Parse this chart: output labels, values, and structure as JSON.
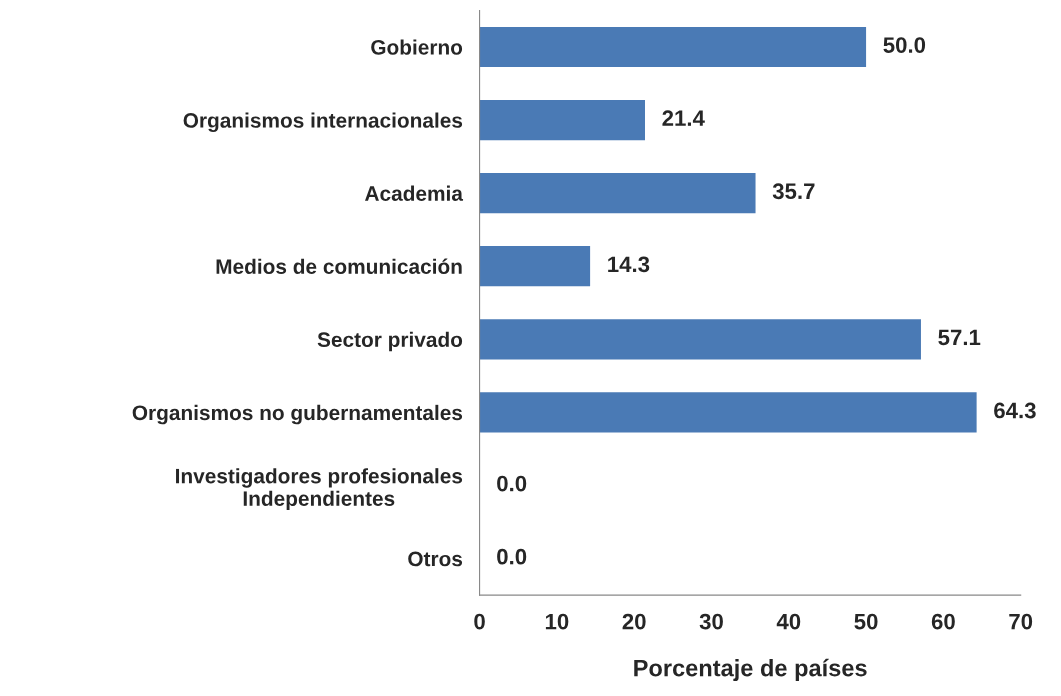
{
  "chart_data": {
    "type": "bar",
    "orientation": "horizontal",
    "categories": [
      "Gobierno",
      "Organismos internacionales",
      "Academia",
      "Medios de comunicación",
      "Sector privado",
      "Organismos no gubernamentales",
      "Investigadores profesionales\nIndependientes",
      "Otros"
    ],
    "values": [
      50.0,
      21.4,
      35.7,
      14.3,
      57.1,
      64.3,
      0.0,
      0.0
    ],
    "value_labels": [
      "50.0",
      "21.4",
      "35.7",
      "14.3",
      "57.1",
      "64.3",
      "0.0",
      "0.0"
    ],
    "color": "#4a7ab5",
    "xlabel": "Porcentaje de países",
    "xlim": [
      0,
      70
    ],
    "xticks": [
      0,
      10,
      20,
      30,
      40,
      50,
      60,
      70
    ],
    "grid": false,
    "legend": false
  }
}
